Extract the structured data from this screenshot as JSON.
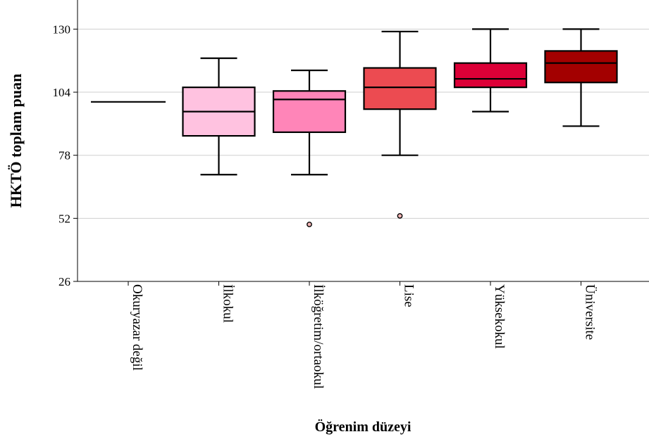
{
  "chart_data": {
    "type": "boxplot",
    "xlabel": "Öğrenim düzeyi",
    "ylabel": "HKTÖ toplam puan",
    "ylim": [
      26,
      142
    ],
    "yticks": [
      26,
      52,
      78,
      104,
      130
    ],
    "grid": true,
    "categories": [
      "Okuryazar değil",
      "İlkokul",
      "İlköğretim/ortaokul",
      "Lise",
      "Yüksekokul",
      "Üniversite"
    ],
    "boxes": [
      {
        "category": "Okuryazar değil",
        "min": 100,
        "q1": 100,
        "median": 100,
        "q3": 100,
        "max": 100,
        "outliers": [],
        "color": "#000000"
      },
      {
        "category": "İlkokul",
        "min": 70,
        "q1": 86,
        "median": 96,
        "q3": 106,
        "max": 118,
        "outliers": [],
        "color": "#ffc2e0"
      },
      {
        "category": "İlköğretim/ortaokul",
        "min": 70,
        "q1": 87.5,
        "median": 101,
        "q3": 104.5,
        "max": 113,
        "outliers": [
          49.5
        ],
        "color": "#ff85b8"
      },
      {
        "category": "Lise",
        "min": 78,
        "q1": 97,
        "median": 106,
        "q3": 114,
        "max": 129,
        "outliers": [
          53
        ],
        "color": "#ec4b51"
      },
      {
        "category": "Yüksekokul",
        "min": 96,
        "q1": 106,
        "median": 109.5,
        "q3": 116,
        "max": 130,
        "outliers": [],
        "color": "#dc0037"
      },
      {
        "category": "Üniversite",
        "min": 90,
        "q1": 108,
        "median": 116,
        "q3": 121,
        "max": 130,
        "outliers": [],
        "color": "#a30000"
      }
    ]
  }
}
